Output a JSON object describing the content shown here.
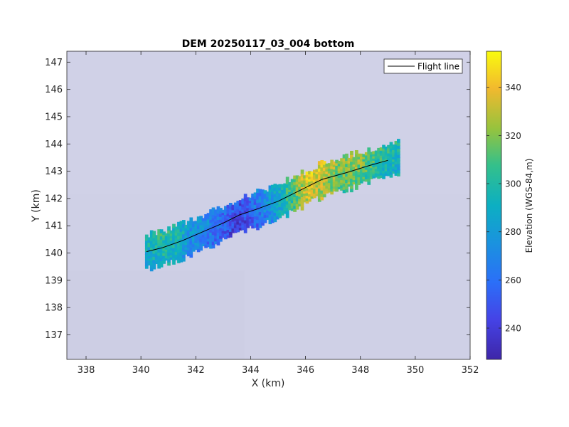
{
  "chart_data": {
    "type": "heatmap",
    "title": "DEM 20250117_03_004 bottom",
    "xlabel": "X (km)",
    "ylabel": "Y (km)",
    "xlim": [
      337.3,
      352.0
    ],
    "ylim": [
      136.1,
      147.4
    ],
    "xticks": [
      338,
      340,
      342,
      344,
      346,
      348,
      350,
      352
    ],
    "yticks": [
      137,
      138,
      139,
      140,
      141,
      142,
      143,
      144,
      145,
      146,
      147
    ],
    "grid": false,
    "legend": {
      "position": "top-right",
      "entries": [
        "Flight line"
      ]
    },
    "colorbar": {
      "label": "Elevation (WGS-84,m)",
      "range": [
        227,
        355
      ],
      "ticks": [
        240,
        260,
        280,
        300,
        320,
        340
      ],
      "colormap": "parula"
    },
    "flight_line": {
      "name": "Flight line",
      "color": "#000000",
      "x": [
        340.2,
        340.8,
        341.5,
        342.3,
        343.0,
        343.6,
        344.2,
        345.0,
        345.8,
        346.6,
        347.5,
        348.3,
        349.0
      ],
      "y": [
        140.05,
        140.2,
        140.45,
        140.8,
        141.1,
        141.4,
        141.6,
        141.9,
        142.3,
        142.7,
        142.95,
        143.2,
        143.4
      ]
    },
    "elevation_profile_along_line": {
      "x": [
        340.2,
        341.0,
        341.8,
        342.6,
        343.2,
        343.6,
        344.2,
        344.8,
        345.4,
        346.0,
        346.6,
        347.2,
        347.8,
        348.4,
        349.0
      ],
      "elevation": [
        290,
        300,
        275,
        265,
        250,
        243,
        262,
        280,
        305,
        335,
        330,
        315,
        320,
        305,
        295
      ]
    },
    "swath_half_width_km": 0.55
  }
}
